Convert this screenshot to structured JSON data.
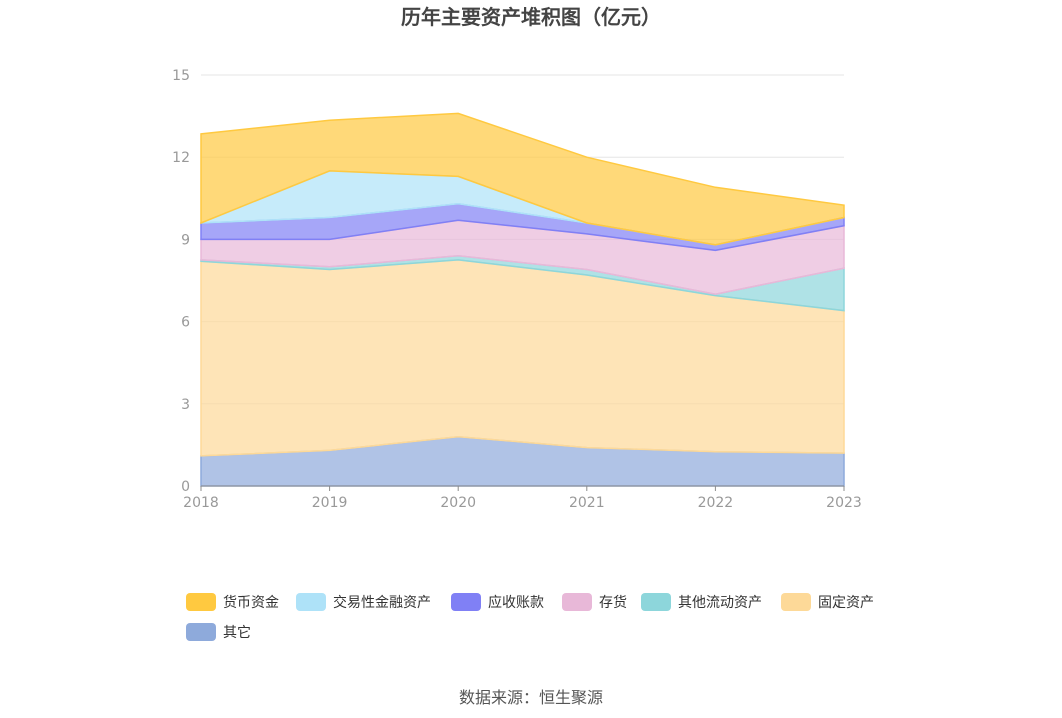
{
  "chart_data": {
    "type": "area",
    "stacked": true,
    "title": "历年主要资产堆积图（亿元）",
    "x": [
      "2018",
      "2019",
      "2020",
      "2021",
      "2022",
      "2023"
    ],
    "yticks": [
      "0",
      "3",
      "6",
      "9",
      "12",
      "15"
    ],
    "ylim": [
      0,
      15
    ],
    "grid": true,
    "legend_position": "bottom",
    "series": [
      {
        "name": "其它",
        "color": "#8eaadb",
        "values": [
          1.1,
          1.3,
          1.8,
          1.4,
          1.25,
          1.2
        ]
      },
      {
        "name": "固定资产",
        "color": "#fdd998",
        "values": [
          7.1,
          6.6,
          6.45,
          6.3,
          5.7,
          5.2
        ]
      },
      {
        "name": "其他流动资产",
        "color": "#8dd6db",
        "values": [
          0.05,
          0.1,
          0.15,
          0.2,
          0.05,
          1.55
        ]
      },
      {
        "name": "存货",
        "color": "#e8b8d8",
        "values": [
          0.75,
          1.0,
          1.3,
          1.3,
          1.6,
          1.55
        ]
      },
      {
        "name": "应收账款",
        "color": "#8080f5",
        "values": [
          0.6,
          0.8,
          0.6,
          0.4,
          0.2,
          0.3
        ]
      },
      {
        "name": "交易性金融资产",
        "color": "#aee2f8",
        "values": [
          0.0,
          1.7,
          1.0,
          0.0,
          0.0,
          0.0
        ]
      },
      {
        "name": "货币资金",
        "color": "#ffc940",
        "values": [
          3.25,
          1.85,
          2.3,
          2.4,
          2.1,
          0.45
        ]
      }
    ]
  },
  "legend_items": [
    "货币资金",
    "交易性金融资产",
    "应收账款",
    "存货",
    "其他流动资产",
    "固定资产",
    "其它"
  ],
  "legend_colors": [
    "#ffc940",
    "#aee2f8",
    "#8080f5",
    "#e8b8d8",
    "#8dd6db",
    "#fdd998",
    "#8eaadb"
  ],
  "source_note": "数据来源：恒生聚源"
}
